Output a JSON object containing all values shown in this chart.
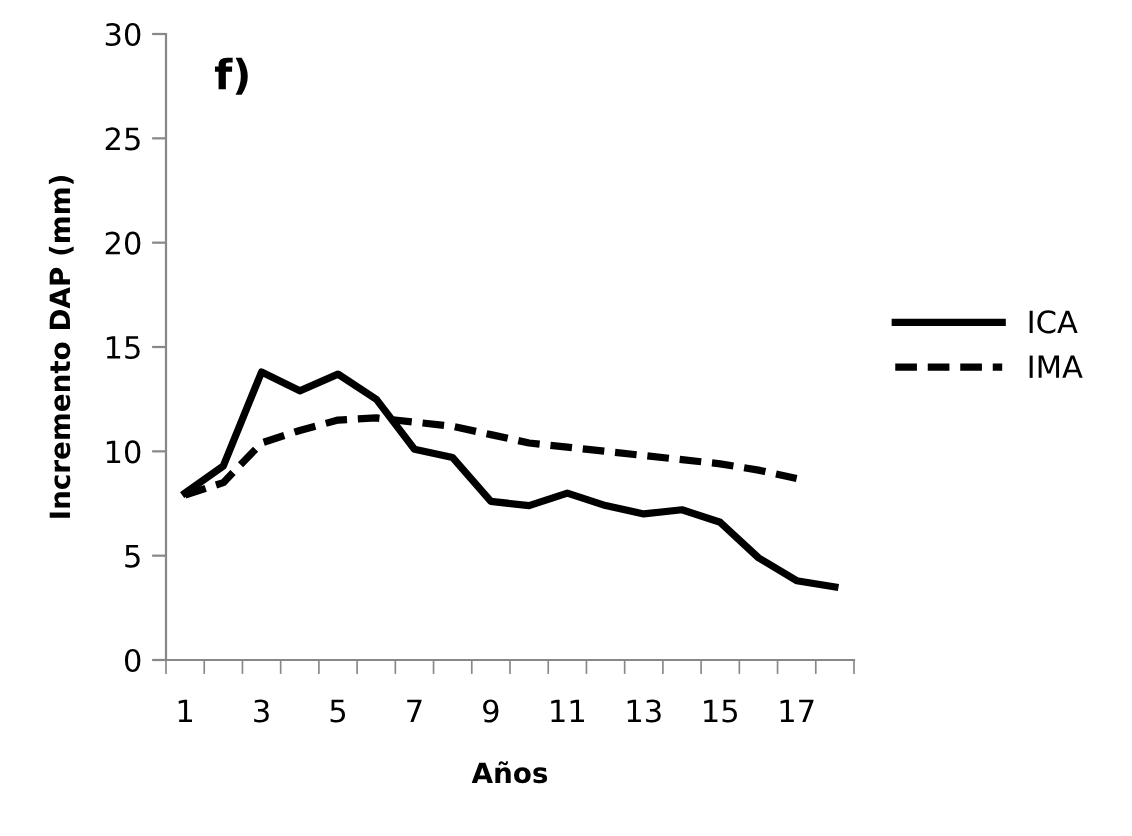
{
  "chart_data": {
    "type": "line",
    "xlabel": "Años",
    "ylabel": "Incremento DAP (mm)",
    "annotations": [
      "f)"
    ],
    "categories": [
      "1",
      null,
      "3",
      null,
      "5",
      null,
      "7",
      null,
      "9",
      null,
      "11",
      null,
      "13",
      null,
      "15",
      null,
      "17",
      null
    ],
    "series": [
      {
        "name": "ICA",
        "color": "#000000",
        "line_style": "solid",
        "values": [
          8.0,
          9.3,
          13.8,
          12.9,
          13.7,
          12.5,
          10.1,
          9.7,
          7.6,
          7.4,
          8.0,
          7.4,
          7.0,
          7.2,
          6.6,
          4.9,
          3.8,
          3.5
        ]
      },
      {
        "name": "IMA",
        "color": "#000000",
        "line_style": "dashed",
        "values": [
          7.9,
          8.5,
          10.4,
          11.0,
          11.5,
          11.6,
          11.4,
          11.2,
          10.8,
          10.4,
          10.2,
          10.0,
          9.8,
          9.6,
          9.4,
          9.1,
          8.7,
          null
        ]
      }
    ],
    "ylim": [
      0,
      30
    ],
    "yticks": [
      0,
      5,
      10,
      15,
      20,
      25,
      30
    ],
    "grid": false,
    "legend": "right",
    "marker": "none"
  }
}
